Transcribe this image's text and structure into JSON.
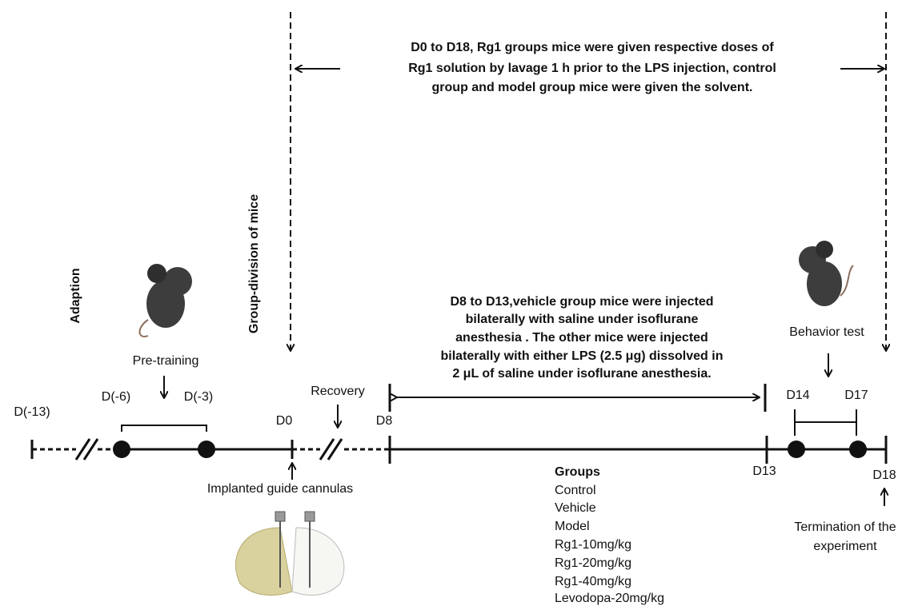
{
  "top_note": {
    "lines": [
      "D0 to D18, Rg1 groups mice were given respective doses of",
      "Rg1 solution by lavage 1 h prior to the LPS injection, control",
      "group and model group mice were given the solvent."
    ]
  },
  "middle_note": {
    "lines": [
      "D8 to D13,vehicle group mice were injected",
      "bilaterally with saline under isoflurane",
      "anesthesia . The other mice were injected",
      "bilaterally with either LPS (2.5 μg) dissolved in",
      "2 μL of saline under isoflurane anesthesia."
    ]
  },
  "labels": {
    "adaption": "Adaption",
    "group_division": "Group-division of mice",
    "pre_training": "Pre-training",
    "recovery": "Recovery",
    "implanted": "Implanted guide cannulas",
    "behavior_test": "Behavior test",
    "termination": [
      "Termination of the",
      "experiment"
    ]
  },
  "days": [
    "D(-13)",
    "D(-6)",
    "D(-3)",
    "D0",
    "D8",
    "D13",
    "D14",
    "D17",
    "D18"
  ],
  "groups": {
    "title": "Groups",
    "items": [
      "Control",
      "Vehicle",
      "Model",
      "Rg1-10mg/kg",
      "Rg1-20mg/kg",
      "Rg1-40mg/kg",
      "Levodopa-20mg/kg"
    ]
  }
}
